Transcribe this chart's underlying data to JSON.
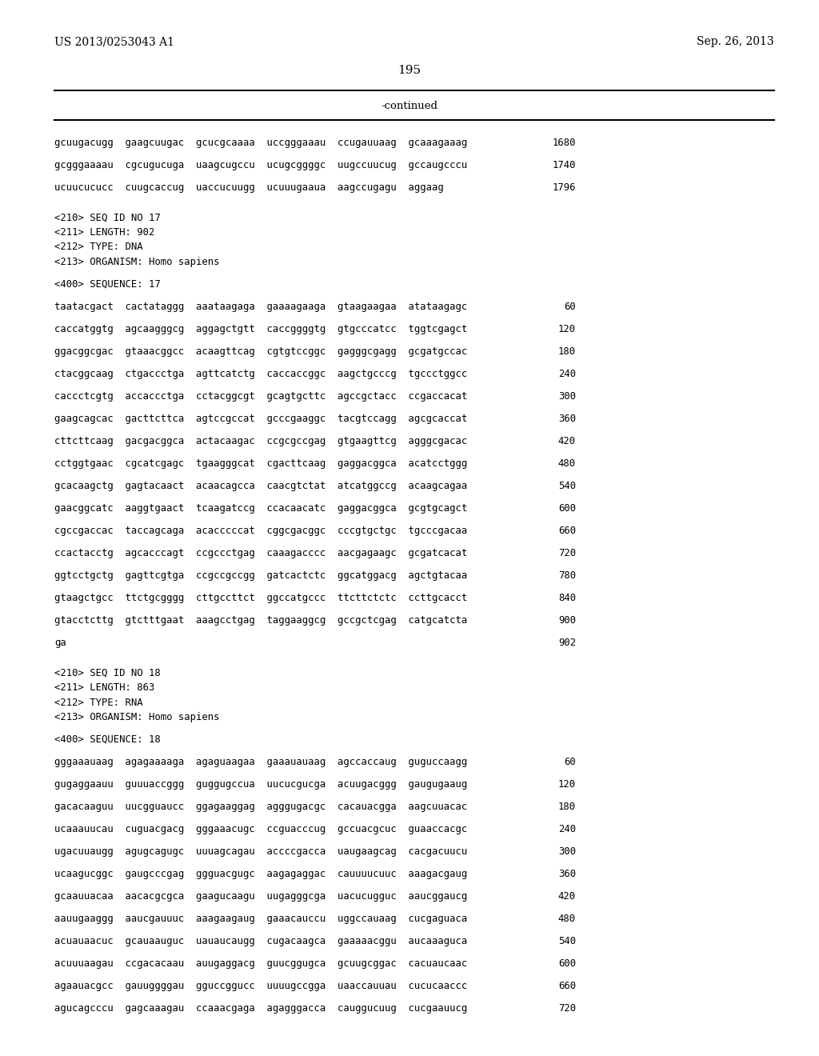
{
  "header_left": "US 2013/0253043 A1",
  "header_right": "Sep. 26, 2013",
  "page_number": "195",
  "continued_label": "-continued",
  "background_color": "#ffffff",
  "text_color": "#000000",
  "lines": [
    {
      "text": "gcuugacugg  gaagcuugac  gcucgcaaaa  uccgggaaau  ccugauuaag  gcaaagaaag",
      "num": "1680"
    },
    {
      "text": "",
      "num": ""
    },
    {
      "text": "gcgggaaaau  cgcugucuga  uaagcugccu  ucugcggggc  uugccuucug  gccaugcccu",
      "num": "1740"
    },
    {
      "text": "",
      "num": ""
    },
    {
      "text": "ucuucucucc  cuugcaccug  uaccucuugg  ucuuugaaua  aagccugagu  aggaag",
      "num": "1796"
    },
    {
      "text": "",
      "num": ""
    },
    {
      "text": "",
      "num": ""
    },
    {
      "text": "<210> SEQ ID NO 17",
      "num": "",
      "meta": true
    },
    {
      "text": "<211> LENGTH: 902",
      "num": "",
      "meta": true
    },
    {
      "text": "<212> TYPE: DNA",
      "num": "",
      "meta": true
    },
    {
      "text": "<213> ORGANISM: Homo sapiens",
      "num": "",
      "meta": true
    },
    {
      "text": "",
      "num": ""
    },
    {
      "text": "<400> SEQUENCE: 17",
      "num": "",
      "meta": true
    },
    {
      "text": "",
      "num": ""
    },
    {
      "text": "taatacgact  cactataggg  aaataagaga  gaaaagaaga  gtaagaagaa  atataagagc",
      "num": "60"
    },
    {
      "text": "",
      "num": ""
    },
    {
      "text": "caccatggtg  agcaagggcg  aggagctgtt  caccggggtg  gtgcccatcc  tggtcgagct",
      "num": "120"
    },
    {
      "text": "",
      "num": ""
    },
    {
      "text": "ggacggcgac  gtaaacggcc  acaagttcag  cgtgtccggc  gagggcgagg  gcgatgccac",
      "num": "180"
    },
    {
      "text": "",
      "num": ""
    },
    {
      "text": "ctacggcaag  ctgaccctga  agttcatctg  caccaccggc  aagctgcccg  tgccctggcc",
      "num": "240"
    },
    {
      "text": "",
      "num": ""
    },
    {
      "text": "caccctcgtg  accaccctga  cctacggcgt  gcagtgcttc  agccgctacc  ccgaccacat",
      "num": "300"
    },
    {
      "text": "",
      "num": ""
    },
    {
      "text": "gaagcagcac  gacttcttca  agtccgccat  gcccgaaggc  tacgtccagg  agcgcaccat",
      "num": "360"
    },
    {
      "text": "",
      "num": ""
    },
    {
      "text": "cttcttcaag  gacgacggca  actacaagac  ccgcgccgag  gtgaagttcg  agggcgacac",
      "num": "420"
    },
    {
      "text": "",
      "num": ""
    },
    {
      "text": "cctggtgaac  cgcatcgagc  tgaagggcat  cgacttcaag  gaggacggca  acatcctggg",
      "num": "480"
    },
    {
      "text": "",
      "num": ""
    },
    {
      "text": "gcacaagctg  gagtacaact  acaacagcca  caacgtctat  atcatggccg  acaagcagaa",
      "num": "540"
    },
    {
      "text": "",
      "num": ""
    },
    {
      "text": "gaacggcatc  aaggtgaact  tcaagatccg  ccacaacatc  gaggacggca  gcgtgcagct",
      "num": "600"
    },
    {
      "text": "",
      "num": ""
    },
    {
      "text": "cgccgaccac  taccagcaga  acacccccat  cggcgacggc  cccgtgctgc  tgcccgacaa",
      "num": "660"
    },
    {
      "text": "",
      "num": ""
    },
    {
      "text": "ccactacctg  agcacccagt  ccgccctgag  caaagacccc  aacgagaagc  gcgatcacat",
      "num": "720"
    },
    {
      "text": "",
      "num": ""
    },
    {
      "text": "ggtcctgctg  gagttcgtga  ccgccgccgg  gatcactctc  ggcatggacg  agctgtacaa",
      "num": "780"
    },
    {
      "text": "",
      "num": ""
    },
    {
      "text": "gtaagctgcc  ttctgcgggg  cttgccttct  ggccatgccc  ttcttctctc  ccttgcacct",
      "num": "840"
    },
    {
      "text": "",
      "num": ""
    },
    {
      "text": "gtacctcttg  gtctttgaat  aaagcctgag  taggaaggcg  gccgctcgag  catgcatcta",
      "num": "900"
    },
    {
      "text": "",
      "num": ""
    },
    {
      "text": "ga",
      "num": "902"
    },
    {
      "text": "",
      "num": ""
    },
    {
      "text": "",
      "num": ""
    },
    {
      "text": "<210> SEQ ID NO 18",
      "num": "",
      "meta": true
    },
    {
      "text": "<211> LENGTH: 863",
      "num": "",
      "meta": true
    },
    {
      "text": "<212> TYPE: RNA",
      "num": "",
      "meta": true
    },
    {
      "text": "<213> ORGANISM: Homo sapiens",
      "num": "",
      "meta": true
    },
    {
      "text": "",
      "num": ""
    },
    {
      "text": "<400> SEQUENCE: 18",
      "num": "",
      "meta": true
    },
    {
      "text": "",
      "num": ""
    },
    {
      "text": "gggaaauaag  agagaaaaga  agaguaagaa  gaaauauaag  agccaccaug  guguccaagg",
      "num": "60"
    },
    {
      "text": "",
      "num": ""
    },
    {
      "text": "gugaggaauu  guuuaccggg  guggugccua  uucucgucga  acuugacggg  gaugugaaug",
      "num": "120"
    },
    {
      "text": "",
      "num": ""
    },
    {
      "text": "gacacaaguu  uucgguaucc  ggagaaggag  agggugacgc  cacauacgga  aagcuuacac",
      "num": "180"
    },
    {
      "text": "",
      "num": ""
    },
    {
      "text": "ucaaauucau  cuguacgacg  gggaaacugc  ccguacccug  gccuacgcuc  guaaccacgc",
      "num": "240"
    },
    {
      "text": "",
      "num": ""
    },
    {
      "text": "ugacuuaugg  agugcagugc  uuuagcagau  accccgacca  uaugaagcag  cacgacuucu",
      "num": "300"
    },
    {
      "text": "",
      "num": ""
    },
    {
      "text": "ucaagucggc  gaugcccgag  ggguacgugc  aagagaggac  cauuuucuuc  aaagacgaug",
      "num": "360"
    },
    {
      "text": "",
      "num": ""
    },
    {
      "text": "gcaauuacaa  aacacgcgca  gaagucaagu  uugagggcga  uacucugguc  aaucggaucg",
      "num": "420"
    },
    {
      "text": "",
      "num": ""
    },
    {
      "text": "aauugaaggg  aaucgauuuc  aaagaagaug  gaaacauccu  uggccauaag  cucgaguaca",
      "num": "480"
    },
    {
      "text": "",
      "num": ""
    },
    {
      "text": "acuauaacuc  gcauaauguc  uauaucaugg  cugacaagca  gaaaaacggu  aucaaaguca",
      "num": "540"
    },
    {
      "text": "",
      "num": ""
    },
    {
      "text": "acuuuaagau  ccgacacaau  auugaggacg  guucggugca  gcuugcggac  cacuaucaac",
      "num": "600"
    },
    {
      "text": "",
      "num": ""
    },
    {
      "text": "agaauacgcc  gauuggggau  gguccggucc  uuuugccgga  uaaccauuau  cucucaaccc",
      "num": "660"
    },
    {
      "text": "",
      "num": ""
    },
    {
      "text": "agucagcccu  gagcaaagau  ccaaacgaga  agagggacca  cauggucuug  cucgaauucg",
      "num": "720"
    }
  ]
}
